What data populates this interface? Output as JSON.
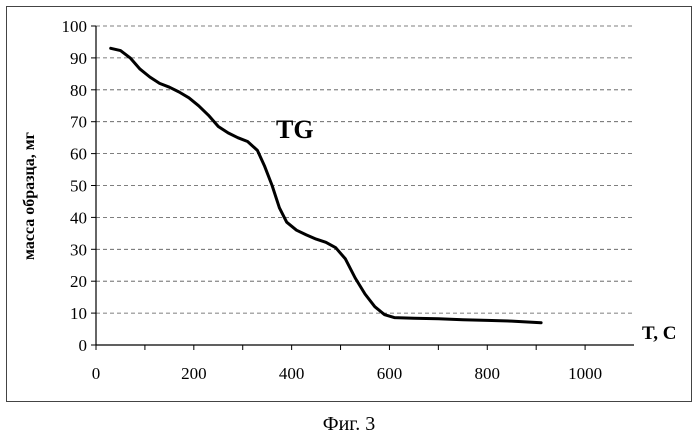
{
  "figure_caption": "Фиг. 3",
  "chart_data": {
    "type": "line",
    "title": "",
    "xlabel": "T, C",
    "ylabel": "масса образца, мг",
    "xlim": [
      0,
      1100
    ],
    "ylim": [
      0,
      100
    ],
    "x_ticks": [
      0,
      200,
      400,
      600,
      800,
      1000
    ],
    "y_ticks": [
      0,
      10,
      20,
      30,
      40,
      50,
      60,
      70,
      80,
      90,
      100
    ],
    "grid": true,
    "annotation": "TG",
    "series": [
      {
        "points": [
          [
            30,
            93
          ],
          [
            50,
            92.3
          ],
          [
            70,
            90
          ],
          [
            90,
            86.5
          ],
          [
            110,
            84
          ],
          [
            130,
            82
          ],
          [
            150,
            80.8
          ],
          [
            170,
            79.3
          ],
          [
            190,
            77.5
          ],
          [
            210,
            75
          ],
          [
            230,
            72
          ],
          [
            250,
            68.5
          ],
          [
            270,
            66.5
          ],
          [
            290,
            65
          ],
          [
            310,
            63.8
          ],
          [
            330,
            61
          ],
          [
            345,
            56
          ],
          [
            360,
            50
          ],
          [
            375,
            43
          ],
          [
            390,
            38.5
          ],
          [
            410,
            36
          ],
          [
            430,
            34.5
          ],
          [
            450,
            33.2
          ],
          [
            470,
            32.2
          ],
          [
            490,
            30.5
          ],
          [
            510,
            27
          ],
          [
            530,
            21
          ],
          [
            550,
            16
          ],
          [
            570,
            12
          ],
          [
            590,
            9.5
          ],
          [
            610,
            8.6
          ],
          [
            650,
            8.4
          ],
          [
            700,
            8.2
          ],
          [
            750,
            7.9
          ],
          [
            800,
            7.7
          ],
          [
            850,
            7.5
          ],
          [
            910,
            7.0
          ]
        ]
      }
    ]
  }
}
